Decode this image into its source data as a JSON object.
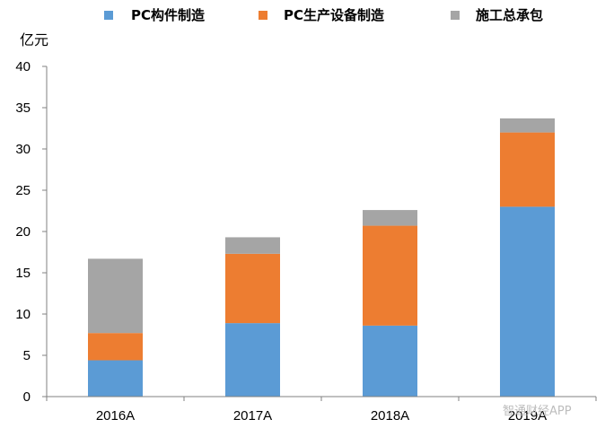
{
  "chart_data": {
    "type": "bar",
    "stacked": true,
    "categories": [
      "2016A",
      "2017A",
      "2018A",
      "2019A"
    ],
    "series": [
      {
        "name": "PC构件制造",
        "values": [
          4.4,
          8.9,
          8.6,
          23.0
        ],
        "color": "#5B9BD5"
      },
      {
        "name": "PC生产设备制造",
        "values": [
          3.3,
          8.4,
          12.1,
          9.0
        ],
        "color": "#ED7D31"
      },
      {
        "name": "施工总承包",
        "values": [
          9.0,
          2.0,
          1.9,
          1.7
        ],
        "color": "#A5A5A5"
      }
    ],
    "ylim": [
      0,
      40
    ],
    "yticks": [
      0,
      5,
      10,
      15,
      20,
      25,
      30,
      35,
      40
    ],
    "ylabel": "亿元",
    "xlabel": "",
    "title": "",
    "legend_position": "top",
    "grid": false
  },
  "watermark": "智通财经APP"
}
